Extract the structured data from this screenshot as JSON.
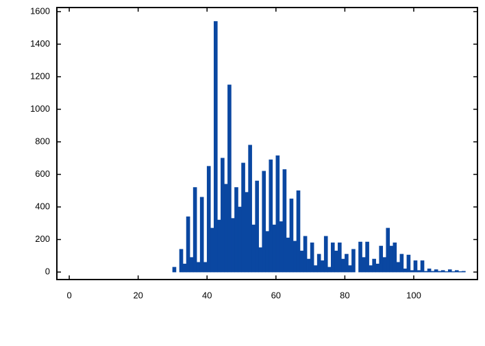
{
  "chart_data": {
    "type": "histogram",
    "bins": [
      0,
      1,
      2,
      3,
      4,
      5,
      6,
      7,
      8,
      9,
      10,
      11,
      12,
      13,
      14,
      15,
      16,
      17,
      18,
      19,
      20,
      21,
      22,
      23,
      24,
      25,
      26,
      27,
      28,
      29,
      30,
      31,
      32,
      33,
      34,
      35,
      36,
      37,
      38,
      39,
      40,
      41,
      42,
      43,
      44,
      45,
      46,
      47,
      48,
      49,
      50,
      51,
      52,
      53,
      54,
      55,
      56,
      57,
      58,
      59,
      60,
      61,
      62,
      63,
      64,
      65,
      66,
      67,
      68,
      69,
      70,
      71,
      72,
      73,
      74,
      75,
      76,
      77,
      78,
      79,
      80,
      81,
      82,
      83,
      84,
      85,
      86,
      87,
      88,
      89,
      90,
      91,
      92,
      93,
      94,
      95,
      96,
      97,
      98,
      99,
      100,
      101,
      102,
      103,
      104,
      105,
      106,
      107,
      108,
      109,
      110,
      111,
      112,
      113,
      114,
      115
    ],
    "values": [
      0,
      0,
      0,
      0,
      0,
      0,
      0,
      0,
      0,
      0,
      0,
      0,
      0,
      0,
      0,
      0,
      0,
      0,
      0,
      0,
      0,
      0,
      0,
      0,
      0,
      0,
      0,
      0,
      0,
      0,
      30,
      0,
      140,
      50,
      340,
      90,
      520,
      60,
      460,
      60,
      650,
      270,
      1540,
      320,
      700,
      540,
      1150,
      330,
      520,
      400,
      670,
      490,
      780,
      290,
      560,
      150,
      620,
      250,
      690,
      290,
      715,
      310,
      630,
      210,
      450,
      190,
      500,
      130,
      220,
      80,
      180,
      40,
      110,
      70,
      220,
      30,
      180,
      130,
      180,
      80,
      110,
      40,
      140,
      0,
      185,
      90,
      185,
      40,
      80,
      50,
      160,
      90,
      270,
      160,
      180,
      60,
      110,
      20,
      105,
      10,
      70,
      10,
      70,
      5,
      20,
      5,
      15,
      5,
      10,
      3,
      15,
      3,
      10,
      3,
      5
    ],
    "color": "#0a47a1",
    "xlim": [
      -3.6,
      118.5
    ],
    "ylim": [
      -46,
      1625
    ],
    "xticks": [
      0,
      20,
      40,
      60,
      80,
      100
    ],
    "yticks": [
      0,
      200,
      400,
      600,
      800,
      1000,
      1200,
      1400,
      1600
    ]
  }
}
